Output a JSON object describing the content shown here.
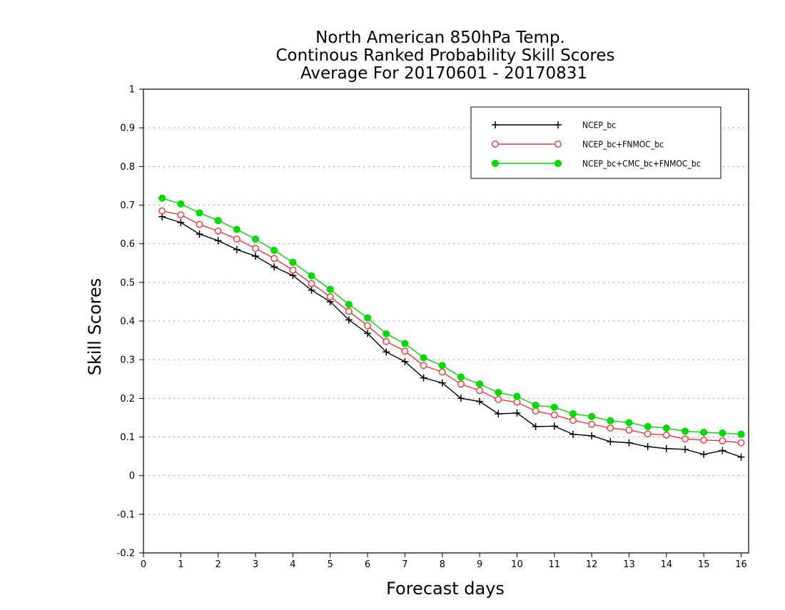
{
  "chart_data": {
    "type": "line",
    "title_lines": [
      "North American 850hPa Temp.",
      "Continous Ranked Probability Skill Scores",
      "Average For 20170601 - 20170831"
    ],
    "xlabel": "Forecast days",
    "ylabel": "Skill Scores",
    "xlim": [
      0,
      16.2
    ],
    "ylim": [
      -0.2,
      1
    ],
    "x_ticks": [
      0,
      1,
      2,
      3,
      4,
      5,
      6,
      7,
      8,
      9,
      10,
      11,
      12,
      13,
      14,
      15,
      16
    ],
    "y_ticks": [
      -0.2,
      -0.1,
      0,
      0.1,
      0.2,
      0.3,
      0.4,
      0.5,
      0.6,
      0.7,
      0.8,
      0.9,
      1
    ],
    "y_tick_labels": [
      "-0.2",
      "-0.1",
      "0",
      "0.1",
      "0.2",
      "0.3",
      "0.4",
      "0.5",
      "0.6",
      "0.7",
      "0.8",
      "0.9",
      "1"
    ],
    "grid": "horizontal dotted",
    "legend_position": "top-right",
    "x": [
      0.5,
      1,
      1.5,
      2,
      2.5,
      3,
      3.5,
      4,
      4.5,
      5,
      5.5,
      6,
      6.5,
      7,
      7.5,
      8,
      8.5,
      9,
      9.5,
      10,
      10.5,
      11,
      11.5,
      12,
      12.5,
      13,
      13.5,
      14,
      14.5,
      15,
      15.5,
      16
    ],
    "series": [
      {
        "name": "NCEP_bc",
        "color": "#000000",
        "marker": "plus",
        "values": [
          0.67,
          0.655,
          0.625,
          0.608,
          0.585,
          0.568,
          0.54,
          0.518,
          0.48,
          0.45,
          0.403,
          0.368,
          0.32,
          0.295,
          0.253,
          0.24,
          0.2,
          0.192,
          0.16,
          0.162,
          0.127,
          0.128,
          0.107,
          0.103,
          0.088,
          0.085,
          0.075,
          0.07,
          0.068,
          0.055,
          0.065,
          0.048
        ]
      },
      {
        "name": "NCEP_bc+FNMOC_bc",
        "color": "#ff3030",
        "marker": "open-circle",
        "values": [
          0.685,
          0.675,
          0.65,
          0.633,
          0.612,
          0.588,
          0.562,
          0.532,
          0.497,
          0.463,
          0.425,
          0.388,
          0.347,
          0.322,
          0.285,
          0.268,
          0.237,
          0.22,
          0.197,
          0.19,
          0.167,
          0.157,
          0.143,
          0.133,
          0.123,
          0.118,
          0.108,
          0.105,
          0.095,
          0.092,
          0.09,
          0.085
        ]
      },
      {
        "name": "NCEP_bc+CMC_bc+FNMOC_bc",
        "color": "#00dc00",
        "marker": "filled-circle",
        "values": [
          0.718,
          0.703,
          0.68,
          0.66,
          0.637,
          0.612,
          0.583,
          0.552,
          0.517,
          0.482,
          0.443,
          0.408,
          0.367,
          0.342,
          0.305,
          0.285,
          0.255,
          0.237,
          0.215,
          0.205,
          0.182,
          0.177,
          0.16,
          0.153,
          0.142,
          0.137,
          0.127,
          0.123,
          0.115,
          0.112,
          0.11,
          0.107
        ]
      }
    ]
  }
}
